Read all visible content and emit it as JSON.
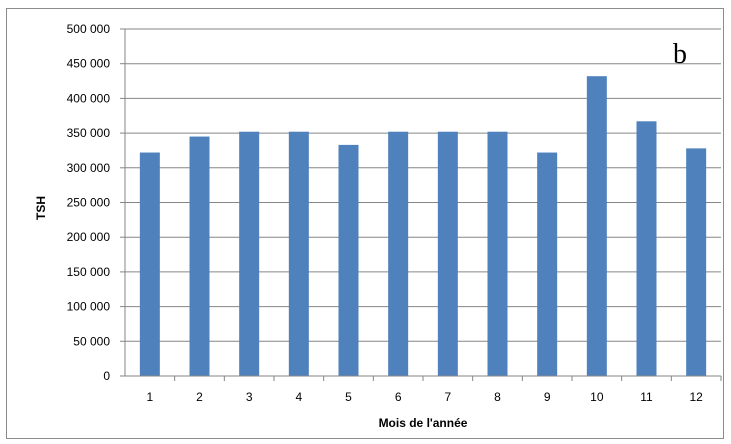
{
  "chart_data": {
    "type": "bar",
    "panel_label": "b",
    "categories": [
      "1",
      "2",
      "3",
      "4",
      "5",
      "6",
      "7",
      "8",
      "9",
      "10",
      "11",
      "12"
    ],
    "values": [
      322000,
      345000,
      352000,
      352000,
      333000,
      352000,
      352000,
      352000,
      322000,
      432000,
      367000,
      328000
    ],
    "xlabel": "Mois de l'année",
    "ylabel": "TSH",
    "ylim": [
      0,
      500000
    ],
    "yticks": [
      "0",
      "50 000",
      "100 000",
      "150 000",
      "200 000",
      "250 000",
      "300 000",
      "350 000",
      "400 000",
      "450 000",
      "500 000"
    ],
    "bar_color": "#4f81bd",
    "grid": true,
    "legend": "none"
  }
}
